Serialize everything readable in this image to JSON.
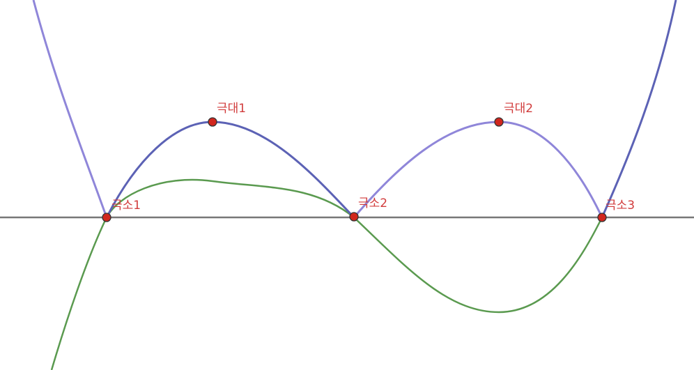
{
  "diagram": {
    "curves": [
      {
        "name": "purple-quartic",
        "color": "#8f86d9"
      },
      {
        "name": "blue-quartic",
        "color": "#5c62b5"
      },
      {
        "name": "green-cubic",
        "color": "#5a9a4f"
      }
    ],
    "axis_color": "#777777",
    "point_color": "#d1261e",
    "points": [
      {
        "id": "minimum-1",
        "label": "극소1"
      },
      {
        "id": "maximum-1",
        "label": "극대1"
      },
      {
        "id": "minimum-2",
        "label": "극소2"
      },
      {
        "id": "maximum-2",
        "label": "극대2"
      },
      {
        "id": "minimum-3",
        "label": "극소3"
      }
    ]
  }
}
